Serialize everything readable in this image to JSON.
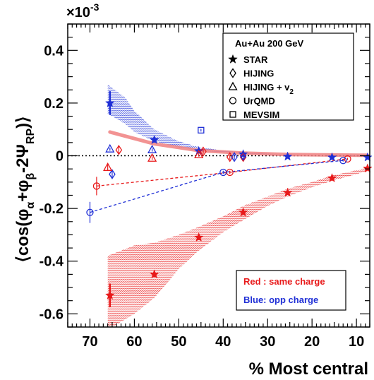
{
  "chart_data": {
    "type": "scatter",
    "title": "",
    "xlabel": "% Most central",
    "ylabel_parts": {
      "open": "⟨cos(φ",
      "sub_a": "α",
      "plus": "+φ",
      "sub_b": "β",
      "minus": "-2Ψ",
      "sub_rp": "RP",
      "close": ")⟩"
    },
    "y_multiplier": {
      "base": "×10",
      "exp": "-3"
    },
    "xlim": [
      75,
      7
    ],
    "ylim": [
      -0.65,
      0.5
    ],
    "x_ticks": [
      70,
      60,
      50,
      40,
      30,
      20,
      10
    ],
    "y_ticks": [
      -0.6,
      -0.4,
      -0.2,
      0,
      0.2,
      0.4
    ],
    "y_tick_labels": [
      "-0.6",
      "-0.4",
      "-0.2",
      "0",
      "0.2",
      "0.4"
    ],
    "x_tick_labels": [
      "70",
      "60",
      "50",
      "40",
      "30",
      "20",
      "10"
    ],
    "legend": {
      "header": "Au+Au 200 GeV",
      "entries": [
        {
          "marker": "star",
          "label": "STAR"
        },
        {
          "marker": "diamond",
          "label": "HIJING"
        },
        {
          "marker": "triangle",
          "label": "HIJING + v",
          "sub": "2"
        },
        {
          "marker": "circle",
          "label": "UrQMD"
        },
        {
          "marker": "square",
          "label": "MEVSIM"
        }
      ]
    },
    "annotations": {
      "red_box": "Red : same charge",
      "blue_box": "Blue:  opp charge"
    },
    "colors": {
      "same_charge": "#e8191a",
      "opp_charge": "#1f2fd6",
      "thick_line": "#f08080"
    },
    "series": [
      {
        "group": "same",
        "marker": "star",
        "label": "STAR",
        "points": [
          {
            "x": 65.5,
            "y": -0.53,
            "err": 0.045
          },
          {
            "x": 55.5,
            "y": -0.45,
            "err": 0.01
          },
          {
            "x": 45.5,
            "y": -0.31,
            "err": 0.01
          },
          {
            "x": 35.5,
            "y": -0.215,
            "err": 0.01
          },
          {
            "x": 25.5,
            "y": -0.14,
            "err": 0.008
          },
          {
            "x": 15.5,
            "y": -0.085,
            "err": 0.005
          },
          {
            "x": 7.5,
            "y": -0.048,
            "err": 0.005
          }
        ]
      },
      {
        "group": "opp",
        "marker": "star",
        "label": "STAR",
        "points": [
          {
            "x": 65.5,
            "y": 0.2,
            "err": 0.045
          },
          {
            "x": 55.5,
            "y": 0.06,
            "err": 0.01
          },
          {
            "x": 45.5,
            "y": 0.018,
            "err": 0.008
          },
          {
            "x": 35.5,
            "y": 0.006,
            "err": 0.005
          },
          {
            "x": 25.5,
            "y": -0.003,
            "err": 0.004
          },
          {
            "x": 15.5,
            "y": -0.006,
            "err": 0.003
          },
          {
            "x": 7.5,
            "y": -0.006,
            "err": 0.003
          }
        ]
      },
      {
        "group": "same",
        "marker": "diamond",
        "label": "HIJING",
        "points": [
          {
            "x": 63.5,
            "y": 0.022,
            "err": 0.018
          },
          {
            "x": 44.5,
            "y": 0.016,
            "err": 0.01
          },
          {
            "x": 38.5,
            "y": -0.005,
            "err": 0.01
          },
          {
            "x": 35.5,
            "y": -0.005,
            "err": 0.01
          }
        ]
      },
      {
        "group": "opp",
        "marker": "diamond",
        "label": "HIJING",
        "points": [
          {
            "x": 65,
            "y": -0.07,
            "err": 0.018
          },
          {
            "x": 37.5,
            "y": -0.005,
            "err": 0.01
          },
          {
            "x": 35.5,
            "y": 0.0,
            "err": 0.01
          }
        ]
      },
      {
        "group": "same",
        "marker": "triangle",
        "label": "HIJING + v2",
        "points": [
          {
            "x": 66,
            "y": -0.045,
            "err": 0.012
          },
          {
            "x": 56,
            "y": -0.01,
            "err": 0.006
          },
          {
            "x": 45.5,
            "y": 0.003,
            "err": 0.006
          }
        ]
      },
      {
        "group": "opp",
        "marker": "triangle",
        "label": "HIJING + v2",
        "points": [
          {
            "x": 65.5,
            "y": 0.025,
            "err": 0.006
          },
          {
            "x": 56,
            "y": 0.022,
            "err": 0.006
          }
        ]
      },
      {
        "group": "same",
        "marker": "circle",
        "label": "UrQMD",
        "points": [
          {
            "x": 68.5,
            "y": -0.115,
            "err": 0.035
          },
          {
            "x": 38.5,
            "y": -0.063,
            "err": 0.006
          },
          {
            "x": 12,
            "y": -0.012,
            "err": 0.004
          }
        ]
      },
      {
        "group": "opp",
        "marker": "circle",
        "label": "UrQMD",
        "points": [
          {
            "x": 70,
            "y": -0.215,
            "err": 0.04
          },
          {
            "x": 40,
            "y": -0.063,
            "err": 0.006
          },
          {
            "x": 13,
            "y": -0.018,
            "err": 0.004
          }
        ]
      },
      {
        "group": "opp",
        "marker": "square",
        "label": "MEVSIM",
        "points": [
          {
            "x": 45,
            "y": 0.097,
            "err": 0.005
          }
        ]
      }
    ],
    "fit_lines": [
      {
        "group": "same",
        "style": "dashed",
        "x": [
          68.5,
          38.5,
          12
        ],
        "y": [
          -0.115,
          -0.063,
          -0.012
        ]
      },
      {
        "group": "opp",
        "style": "dashed",
        "x": [
          70,
          40,
          13
        ],
        "y": [
          -0.215,
          -0.063,
          -0.018
        ]
      },
      {
        "group": "opp",
        "style": "thick",
        "x": [
          65.5,
          55.5,
          45.5,
          35.5,
          25.5,
          15.5,
          7.5
        ],
        "y": [
          0.09,
          0.045,
          0.02,
          0.01,
          0.005,
          0.003,
          0.002
        ]
      }
    ],
    "bands": [
      {
        "group": "same",
        "x": [
          66,
          60,
          55.5,
          50,
          45.5,
          40,
          35.5,
          30,
          25.5,
          20,
          15.5,
          10,
          7.5
        ],
        "lower": [
          -0.66,
          -0.6,
          -0.54,
          -0.43,
          -0.36,
          -0.29,
          -0.245,
          -0.19,
          -0.155,
          -0.12,
          -0.095,
          -0.07,
          -0.058
        ],
        "upper": [
          -0.38,
          -0.34,
          -0.33,
          -0.3,
          -0.27,
          -0.23,
          -0.19,
          -0.155,
          -0.125,
          -0.1,
          -0.075,
          -0.055,
          -0.045
        ]
      },
      {
        "group": "opp",
        "x": [
          66,
          62,
          60,
          55.5,
          50,
          45.5,
          40,
          35.5,
          30,
          25.5,
          20,
          15.5,
          10,
          7.5
        ],
        "lower": [
          0.16,
          0.12,
          0.09,
          0.055,
          0.032,
          0.02,
          0.013,
          0.008,
          0.004,
          0.002,
          0.001,
          0.0,
          -0.002,
          -0.004
        ],
        "upper": [
          0.27,
          0.22,
          0.17,
          0.1,
          0.055,
          0.033,
          0.02,
          0.013,
          0.008,
          0.005,
          0.004,
          0.003,
          0.002,
          0.0
        ]
      }
    ]
  }
}
